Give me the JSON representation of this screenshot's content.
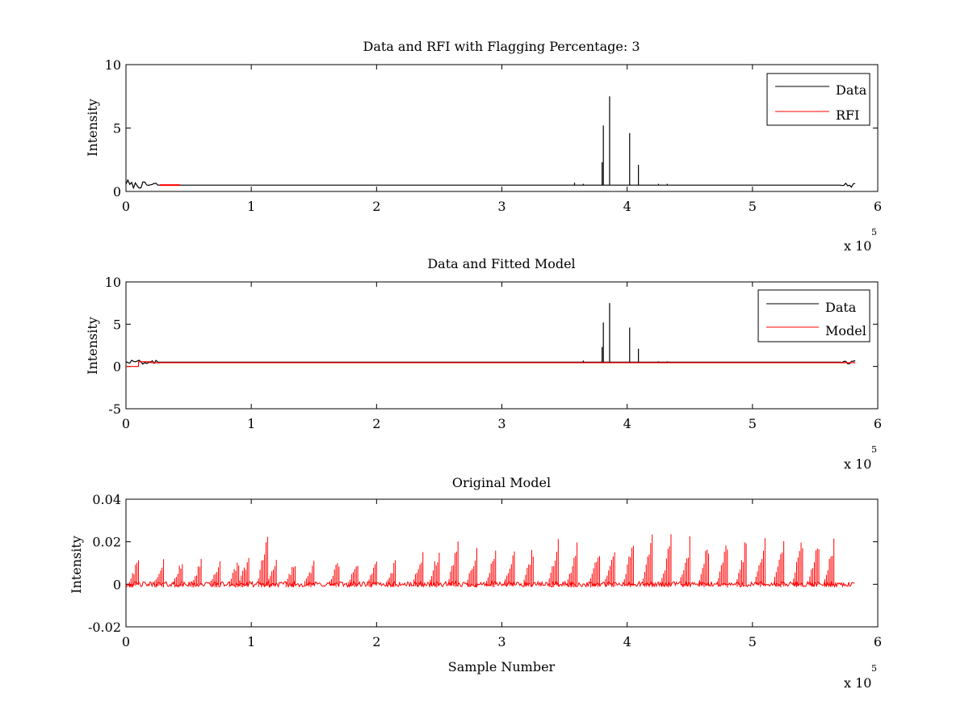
{
  "chart_data": [
    {
      "type": "line",
      "title": "Data and RFI with Flagging Percentage: 3",
      "xlabel": "",
      "ylabel": "Intensity",
      "xlim": [
        0,
        600000
      ],
      "ylim": [
        0,
        10
      ],
      "x_ticks": [
        "0",
        "1",
        "2",
        "3",
        "4",
        "5",
        "6"
      ],
      "y_ticks": [
        "0",
        "5",
        "10"
      ],
      "x_multiplier": {
        "base": "x 10",
        "exponent": "5"
      },
      "legend": {
        "position": "top-right",
        "entries": [
          {
            "name": "Data",
            "color": "#000000"
          },
          {
            "name": "RFI",
            "color": "#ff0000"
          }
        ]
      },
      "series": [
        {
          "name": "Data",
          "color": "#000000",
          "baseline": 0.5,
          "spikes": [
            {
              "x": 380000,
              "y": 2.3
            },
            {
              "x": 381000,
              "y": 5.2
            },
            {
              "x": 386000,
              "y": 7.5
            },
            {
              "x": 402000,
              "y": 4.6
            },
            {
              "x": 409000,
              "y": 2.1
            },
            {
              "x": 365000,
              "y": 0.6
            },
            {
              "x": 358000,
              "y": 0.7
            },
            {
              "x": 425000,
              "y": 0.6
            },
            {
              "x": 432000,
              "y": 0.6
            }
          ]
        },
        {
          "name": "RFI",
          "color": "#ff0000",
          "segment": [
            27000,
            43000
          ],
          "level": 0.5
        }
      ]
    },
    {
      "type": "line",
      "title": "Data and Fitted Model",
      "xlabel": "",
      "ylabel": "Intensity",
      "xlim": [
        0,
        600000
      ],
      "ylim": [
        -5,
        10
      ],
      "x_ticks": [
        "0",
        "1",
        "2",
        "3",
        "4",
        "5",
        "6"
      ],
      "y_ticks": [
        "-5",
        "0",
        "5",
        "10"
      ],
      "x_multiplier": {
        "base": "x 10",
        "exponent": "5"
      },
      "legend": {
        "position": "top-right",
        "entries": [
          {
            "name": "Data",
            "color": "#000000"
          },
          {
            "name": "Model",
            "color": "#ff0000"
          }
        ]
      },
      "series": [
        {
          "name": "Data",
          "color": "#000000",
          "baseline": 0.5,
          "spikes": [
            {
              "x": 380000,
              "y": 2.3
            },
            {
              "x": 381000,
              "y": 5.2
            },
            {
              "x": 386000,
              "y": 7.5
            },
            {
              "x": 402000,
              "y": 4.6
            },
            {
              "x": 409000,
              "y": 2.1
            },
            {
              "x": 365000,
              "y": 0.7
            },
            {
              "x": 425000,
              "y": 0.6
            },
            {
              "x": 432000,
              "y": 0.6
            }
          ]
        },
        {
          "name": "Model",
          "color": "#ff0000",
          "baseline": 0.45
        }
      ]
    },
    {
      "type": "line",
      "title": "Original Model",
      "xlabel": "Sample Number",
      "ylabel": "Intensity",
      "xlim": [
        0,
        600000
      ],
      "ylim": [
        -0.02,
        0.04
      ],
      "x_ticks": [
        "0",
        "1",
        "2",
        "3",
        "4",
        "5",
        "6"
      ],
      "y_ticks": [
        "-0.02",
        "0",
        "0.02",
        "0.04"
      ],
      "x_multiplier": {
        "base": "x 10",
        "exponent": "5"
      },
      "series": [
        {
          "name": "",
          "color": "#ff0000",
          "spikes": [
            {
              "x": 10000,
              "y": 0.013
            },
            {
              "x": 30000,
              "y": 0.012
            },
            {
              "x": 45000,
              "y": 0.013
            },
            {
              "x": 60000,
              "y": 0.012
            },
            {
              "x": 75000,
              "y": 0.013
            },
            {
              "x": 90000,
              "y": 0.014
            },
            {
              "x": 98000,
              "y": 0.015
            },
            {
              "x": 113000,
              "y": 0.029
            },
            {
              "x": 120000,
              "y": 0.013
            },
            {
              "x": 135000,
              "y": 0.012
            },
            {
              "x": 150000,
              "y": 0.012
            },
            {
              "x": 170000,
              "y": 0.013
            },
            {
              "x": 185000,
              "y": 0.012
            },
            {
              "x": 200000,
              "y": 0.013
            },
            {
              "x": 215000,
              "y": 0.012
            },
            {
              "x": 237000,
              "y": 0.017
            },
            {
              "x": 250000,
              "y": 0.019
            },
            {
              "x": 265000,
              "y": 0.021
            },
            {
              "x": 280000,
              "y": 0.019
            },
            {
              "x": 295000,
              "y": 0.017
            },
            {
              "x": 310000,
              "y": 0.018
            },
            {
              "x": 325000,
              "y": 0.019
            },
            {
              "x": 345000,
              "y": 0.023
            },
            {
              "x": 360000,
              "y": 0.02
            },
            {
              "x": 378000,
              "y": 0.022
            },
            {
              "x": 390000,
              "y": 0.021
            },
            {
              "x": 405000,
              "y": 0.024
            },
            {
              "x": 420000,
              "y": 0.024
            },
            {
              "x": 435000,
              "y": 0.024
            },
            {
              "x": 450000,
              "y": 0.024
            },
            {
              "x": 465000,
              "y": 0.023
            },
            {
              "x": 480000,
              "y": 0.024
            },
            {
              "x": 495000,
              "y": 0.024
            },
            {
              "x": 510000,
              "y": 0.025
            },
            {
              "x": 525000,
              "y": 0.025
            },
            {
              "x": 540000,
              "y": 0.025
            },
            {
              "x": 553000,
              "y": 0.026
            },
            {
              "x": 565000,
              "y": 0.024
            }
          ]
        }
      ]
    }
  ]
}
